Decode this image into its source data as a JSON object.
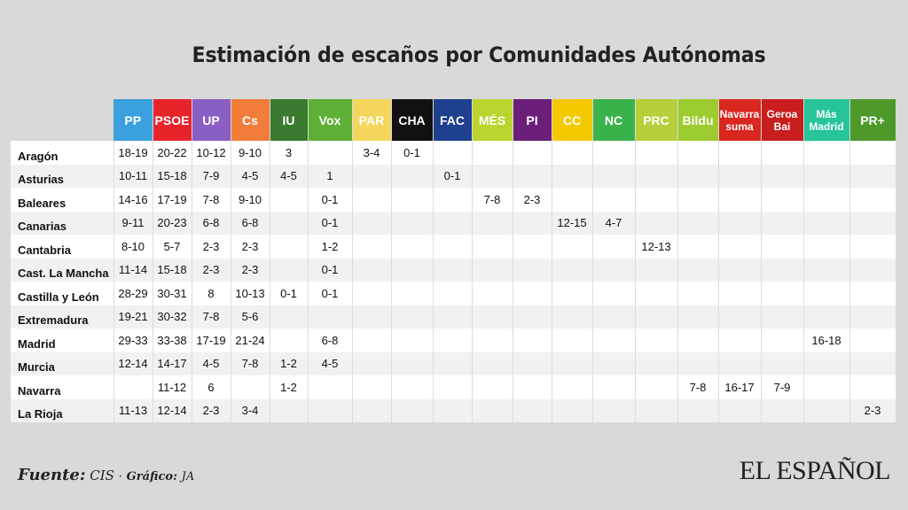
{
  "header": {
    "title": "Estimación de escaños por Comunidades Autónomas"
  },
  "footer": {
    "source_label": "Fuente:",
    "source_value": "CIS",
    "separator": "·",
    "graphic_label": "Gráfico:",
    "graphic_value": "JA"
  },
  "logo": {
    "text": "EL ESPAÑOL"
  },
  "chart_data": {
    "type": "table",
    "title": "Estimación de escaños por Comunidades Autónomas",
    "columns": [
      {
        "label": "PP",
        "color": "#3ba1de"
      },
      {
        "label": "PSOE",
        "color": "#e8242b"
      },
      {
        "label": "UP",
        "color": "#8a5fc4"
      },
      {
        "label": "Cs",
        "color": "#f17d3a"
      },
      {
        "label": "IU",
        "color": "#3b7b2f"
      },
      {
        "label": "Vox",
        "color": "#5fb036"
      },
      {
        "label": "PAR",
        "color": "#f4d65c"
      },
      {
        "label": "CHA",
        "color": "#111111"
      },
      {
        "label": "FAC",
        "color": "#1f3f8f"
      },
      {
        "label": "MÉS",
        "color": "#bcd42e"
      },
      {
        "label": "PI",
        "color": "#6b1e7a"
      },
      {
        "label": "CC",
        "color": "#f4c900"
      },
      {
        "label": "NC",
        "color": "#3cb34a"
      },
      {
        "label": "PRC",
        "color": "#b7cf3a"
      },
      {
        "label": "Bildu",
        "color": "#9ccc2f"
      },
      {
        "label": "Navarra suma",
        "color": "#d9261f"
      },
      {
        "label": "Geroa Bai",
        "color": "#c81e1e"
      },
      {
        "label": "Más Madrid",
        "color": "#27c49a"
      },
      {
        "label": "PR+",
        "color": "#4d9a2b"
      }
    ],
    "rows": [
      {
        "name": "Aragón",
        "values": [
          "18-19",
          "20-22",
          "10-12",
          "9-10",
          "3",
          "",
          "3-4",
          "0-1",
          "",
          "",
          "",
          "",
          "",
          "",
          "",
          "",
          "",
          "",
          ""
        ]
      },
      {
        "name": "Asturias",
        "values": [
          "10-11",
          "15-18",
          "7-9",
          "4-5",
          "4-5",
          "1",
          "",
          "",
          "0-1",
          "",
          "",
          "",
          "",
          "",
          "",
          "",
          "",
          "",
          ""
        ]
      },
      {
        "name": "Baleares",
        "values": [
          "14-16",
          "17-19",
          "7-8",
          "9-10",
          "",
          "0-1",
          "",
          "",
          "",
          "7-8",
          "2-3",
          "",
          "",
          "",
          "",
          "",
          "",
          "",
          ""
        ]
      },
      {
        "name": "Canarias",
        "values": [
          "9-11",
          "20-23",
          "6-8",
          "6-8",
          "",
          "0-1",
          "",
          "",
          "",
          "",
          "",
          "12-15",
          "4-7",
          "",
          "",
          "",
          "",
          "",
          ""
        ]
      },
      {
        "name": "Cantabria",
        "values": [
          "8-10",
          "5-7",
          "2-3",
          "2-3",
          "",
          "1-2",
          "",
          "",
          "",
          "",
          "",
          "",
          "",
          "12-13",
          "",
          "",
          "",
          "",
          ""
        ]
      },
      {
        "name": "Cast. La Mancha",
        "values": [
          "11-14",
          "15-18",
          "2-3",
          "2-3",
          "",
          "0-1",
          "",
          "",
          "",
          "",
          "",
          "",
          "",
          "",
          "",
          "",
          "",
          "",
          ""
        ]
      },
      {
        "name": "Castilla y León",
        "values": [
          "28-29",
          "30-31",
          "8",
          "10-13",
          "0-1",
          "0-1",
          "",
          "",
          "",
          "",
          "",
          "",
          "",
          "",
          "",
          "",
          "",
          "",
          ""
        ]
      },
      {
        "name": "Extremadura",
        "values": [
          "19-21",
          "30-32",
          "7-8",
          "5-6",
          "",
          "",
          "",
          "",
          "",
          "",
          "",
          "",
          "",
          "",
          "",
          "",
          "",
          "",
          ""
        ]
      },
      {
        "name": "Madrid",
        "values": [
          "29-33",
          "33-38",
          "17-19",
          "21-24",
          "",
          "6-8",
          "",
          "",
          "",
          "",
          "",
          "",
          "",
          "",
          "",
          "",
          "",
          "16-18",
          ""
        ]
      },
      {
        "name": "Murcia",
        "values": [
          "12-14",
          "14-17",
          "4-5",
          "7-8",
          "1-2",
          "4-5",
          "",
          "",
          "",
          "",
          "",
          "",
          "",
          "",
          "",
          "",
          "",
          "",
          ""
        ]
      },
      {
        "name": "Navarra",
        "values": [
          "",
          "11-12",
          "6",
          "",
          "1-2",
          "",
          "",
          "",
          "",
          "",
          "",
          "",
          "",
          "",
          "7-8",
          "16-17",
          "7-9",
          "",
          ""
        ]
      },
      {
        "name": "La Rioja",
        "values": [
          "11-13",
          "12-14",
          "2-3",
          "3-4",
          "",
          "",
          "",
          "",
          "",
          "",
          "",
          "",
          "",
          "",
          "",
          "",
          "",
          "",
          "2-3"
        ]
      }
    ]
  }
}
